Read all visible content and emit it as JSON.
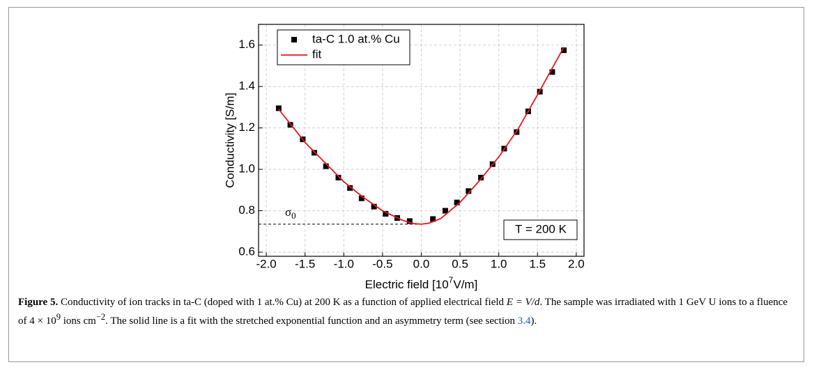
{
  "chart_data": {
    "type": "scatter",
    "y_label": "Conductivity [S/m]",
    "x_label": [
      "Electric field [10",
      "7",
      "V/m]"
    ],
    "xlim": [
      -2.1,
      2.1
    ],
    "ylim": [
      0.58,
      1.7
    ],
    "xticks": [
      {
        "value": -2,
        "label": "-2.0"
      },
      {
        "value": -1.5,
        "label": "-1.5"
      },
      {
        "value": -1,
        "label": "-1.0"
      },
      {
        "value": -0.5,
        "label": "-0.5"
      },
      {
        "value": 0,
        "label": "0.0"
      },
      0.5,
      {
        "value": 1,
        "label": "1.0"
      },
      1.5,
      {
        "value": 2,
        "label": "2.0"
      }
    ],
    "yticks": [
      0.6,
      0.8,
      {
        "value": 1,
        "label": "1.0"
      },
      1.2,
      1.4,
      1.6
    ],
    "grid": true,
    "legend": "upper-left",
    "series": [
      {
        "name": "ta-C 1.0 at.% Cu",
        "color": "#000000",
        "marker": "square",
        "x": [
          -1.84,
          -1.69,
          -1.53,
          -1.38,
          -1.23,
          -1.07,
          -0.92,
          -0.77,
          -0.61,
          -0.46,
          -0.31,
          -0.15,
          0.15,
          0.31,
          0.46,
          0.61,
          0.77,
          0.92,
          1.07,
          1.23,
          1.38,
          1.53,
          1.69,
          1.84
        ],
        "values": [
          1.295,
          1.215,
          1.145,
          1.08,
          1.015,
          0.96,
          0.91,
          0.86,
          0.82,
          0.785,
          0.765,
          0.75,
          0.76,
          0.8,
          0.84,
          0.895,
          0.96,
          1.025,
          1.1,
          1.18,
          1.28,
          1.375,
          1.47,
          1.575
        ]
      },
      {
        "name": "fit",
        "color": "#e8141b",
        "marker": "line",
        "x": [
          -1.84,
          -1.5,
          -1.0,
          -0.75,
          -0.5,
          -0.25,
          -0.1,
          0,
          0.1,
          0.25,
          0.5,
          0.75,
          1.0,
          1.25,
          1.5,
          1.84
        ],
        "values": [
          1.29,
          1.13,
          0.94,
          0.865,
          0.8,
          0.755,
          0.738,
          0.735,
          0.74,
          0.762,
          0.84,
          0.945,
          1.06,
          1.195,
          1.36,
          1.59
        ]
      }
    ],
    "sigma_annotation": {
      "text": [
        "σ",
        "0"
      ],
      "y": 0.735
    },
    "temperature_annotation": "T = 200 K"
  },
  "caption": {
    "label": "Figure 5.",
    "segments": [
      " Conductivity of ion tracks in ta-C (doped with 1 at.% Cu) at 200 K as a function of applied electrical field ",
      "E = V/d",
      ". The sample was irradiated with 1 GeV U ions to a fluence of 4 × 10",
      "9",
      " ions cm",
      "−2",
      ". The solid line is a fit with the stretched exponential function and an asymmetry term (see section ",
      "3.4",
      ")."
    ]
  }
}
